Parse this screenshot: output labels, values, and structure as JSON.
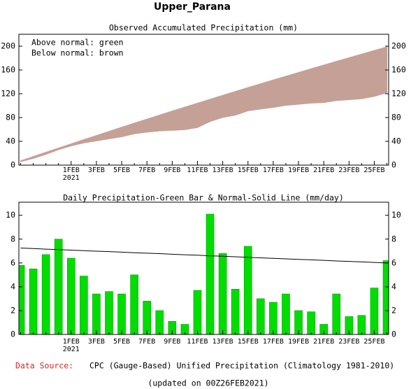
{
  "title": "Upper_Parana",
  "footer": {
    "source_label": "Data Source:",
    "source": "CPC (Gauge-Based) Unified Precipitation (Climatology 1981-2010)",
    "updated": "(updated on 00Z26FEB2021)"
  },
  "chart_data": [
    {
      "type": "area",
      "title": "Observed Accumulated Precipitation (mm)",
      "annotations": [
        "Above normal: green",
        "Below normal: brown"
      ],
      "categories": [
        null,
        null,
        null,
        null,
        "1FEB",
        null,
        "3FEB",
        null,
        "5FEB",
        null,
        "7FEB",
        null,
        "9FEB",
        null,
        "11FEB",
        null,
        "13FEB",
        null,
        "15FEB",
        null,
        "17FEB",
        null,
        "19FEB",
        null,
        "21FEB",
        null,
        "23FEB",
        null,
        "25FEB",
        null
      ],
      "year_label": "2021",
      "fill_color": "#c4a096",
      "series": [
        {
          "values": [
            7.3,
            14.5,
            21.6,
            28.7,
            35.8,
            42.9,
            49.8,
            56.8,
            63.7,
            70.6,
            77.4,
            84.2,
            90.9,
            97.6,
            104.2,
            110.8,
            117.4,
            123.9,
            130.4,
            136.8,
            143.2,
            149.5,
            155.8,
            162.1,
            168.3,
            174.5,
            180.6,
            186.7,
            192.8,
            198.8
          ]
        },
        {
          "values": [
            5.8,
            11.3,
            18.0,
            26.0,
            32.4,
            37.3,
            40.7,
            44.3,
            47.7,
            52.7,
            55.5,
            57.5,
            58.6,
            59.5,
            63.2,
            73.3,
            80.1,
            83.9,
            91.3,
            94.3,
            97.0,
            100.4,
            102.4,
            104.3,
            105.1,
            108.5,
            110.0,
            111.6,
            115.5,
            121.7
          ]
        }
      ],
      "ylim": [
        0,
        220
      ],
      "yticks": [
        0,
        40,
        80,
        120,
        160,
        200
      ],
      "y2lim": [
        0,
        220
      ],
      "y2ticks": [
        0,
        40,
        80,
        120,
        160,
        200
      ]
    },
    {
      "type": "bar",
      "title": "Daily Precipitation-Green Bar & Normal-Solid Line (mm/day)",
      "categories": [
        null,
        null,
        null,
        null,
        "1FEB",
        null,
        "3FEB",
        null,
        "5FEB",
        null,
        "7FEB",
        null,
        "9FEB",
        null,
        "11FEB",
        null,
        "13FEB",
        null,
        "15FEB",
        null,
        "17FEB",
        null,
        "19FEB",
        null,
        "21FEB",
        null,
        "23FEB",
        null,
        "25FEB",
        null
      ],
      "year_label": "2021",
      "series": [
        {
          "type": "bar",
          "color": "#00dd00",
          "values": [
            5.8,
            5.5,
            6.7,
            8.0,
            6.4,
            4.9,
            3.4,
            3.6,
            3.4,
            5.0,
            2.8,
            2.0,
            1.1,
            0.85,
            3.7,
            10.1,
            6.8,
            3.8,
            7.4,
            3.0,
            2.7,
            3.4,
            2.0,
            1.9,
            0.85,
            3.4,
            1.5,
            1.6,
            3.9,
            6.2
          ]
        },
        {
          "type": "line",
          "color": "#000000",
          "values": [
            7.25,
            7.21,
            7.16,
            7.12,
            7.08,
            7.03,
            6.99,
            6.95,
            6.91,
            6.86,
            6.82,
            6.78,
            6.73,
            6.69,
            6.65,
            6.6,
            6.56,
            6.52,
            6.47,
            6.43,
            6.39,
            6.34,
            6.3,
            6.26,
            6.22,
            6.17,
            6.13,
            6.09,
            6.04,
            6.0
          ]
        }
      ],
      "ylim": [
        0,
        11.1
      ],
      "yticks": [
        0,
        2,
        4,
        6,
        8,
        10
      ],
      "y2lim": [
        0,
        11.1
      ],
      "y2ticks": [
        0,
        2,
        4,
        6,
        8,
        10
      ]
    }
  ]
}
